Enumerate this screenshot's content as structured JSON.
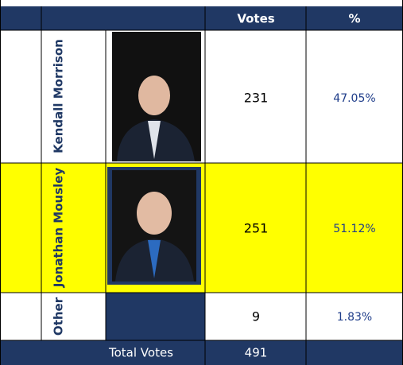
{
  "table": {
    "header": [
      "Votes",
      "%"
    ],
    "rows": [
      {
        "name": "Kendall Morrison",
        "votes": 231,
        "percent": "47.05%"
      },
      {
        "name": "Jonathan Mousley",
        "votes": 251,
        "percent": "51.12%"
      },
      {
        "name": "Other",
        "votes": 9,
        "percent": "1.83%"
      }
    ],
    "total": {
      "label": "Total Votes",
      "votes": 491
    }
  }
}
